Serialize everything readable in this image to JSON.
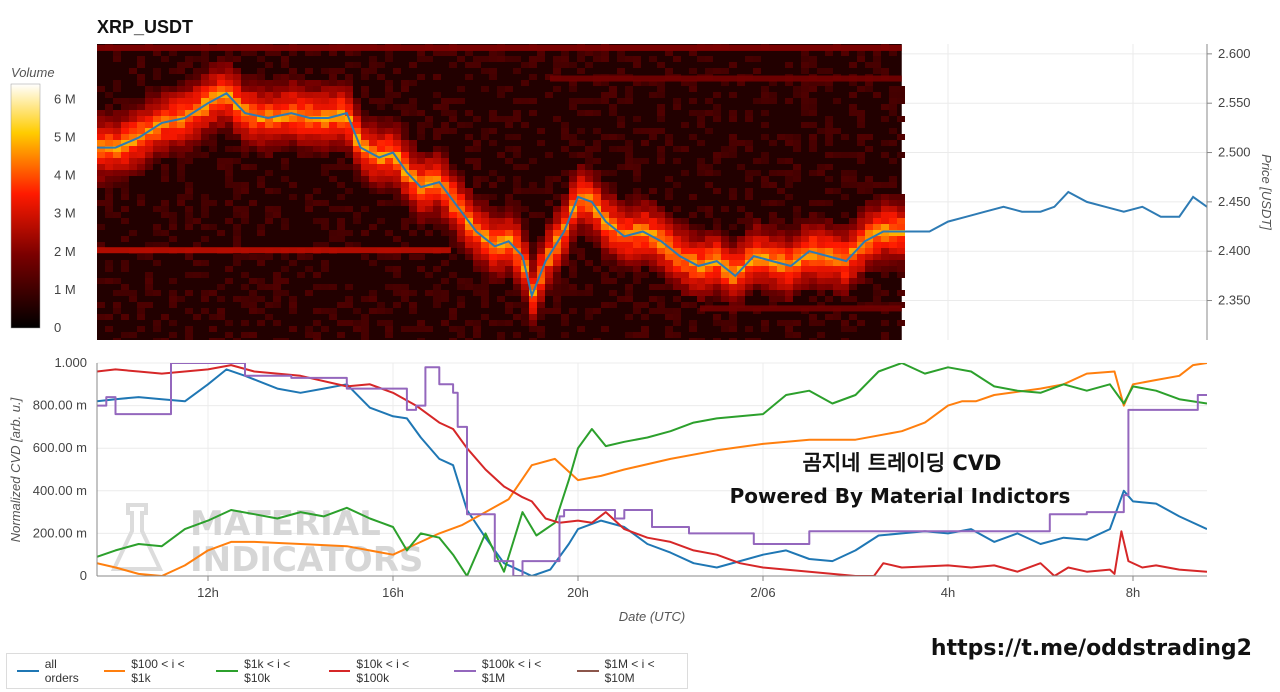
{
  "chart_data": [
    {
      "type": "heatmap",
      "title": "XRP_USDT",
      "colorbar_label": "Volume",
      "colorbar_ticks": [
        "0",
        "1 M",
        "2 M",
        "3 M",
        "4 M",
        "5 M",
        "6 M"
      ],
      "colorbar_values": [
        0,
        1,
        2,
        3,
        4,
        5,
        6
      ],
      "ylabel": "Price [USDT]",
      "ylim": [
        2.31,
        2.61
      ],
      "y_ticks": [
        "2.350",
        "2.400",
        "2.450",
        "2.500",
        "2.550",
        "2.600"
      ],
      "y_tick_values": [
        2.35,
        2.4,
        2.45,
        2.5,
        2.55,
        2.6
      ],
      "x_hours_range": [
        9.6,
        33.6
      ],
      "heatmap_end_hour": 27.0,
      "price_line": {
        "color": "#2e7bb4",
        "x": [
          9.6,
          10.0,
          10.5,
          11.0,
          11.5,
          12.0,
          12.4,
          12.8,
          13.3,
          13.8,
          14.2,
          14.6,
          15.0,
          15.3,
          15.7,
          16.0,
          16.3,
          16.6,
          17.0,
          17.4,
          17.8,
          18.2,
          18.5,
          18.8,
          19.0,
          19.3,
          19.7,
          20.0,
          20.3,
          20.6,
          21.0,
          21.4,
          21.8,
          22.2,
          22.6,
          23.0,
          23.4,
          23.8,
          24.2,
          24.6,
          25.0,
          25.4,
          25.8,
          26.2,
          26.6,
          27.0,
          27.3,
          27.6,
          28.0,
          28.4,
          28.8,
          29.2,
          29.6,
          30.0,
          30.3,
          30.6,
          31.0,
          31.4,
          31.8,
          32.2,
          32.6,
          33.0,
          33.3,
          33.6
        ],
        "y": [
          2.505,
          2.505,
          2.515,
          2.53,
          2.535,
          2.55,
          2.56,
          2.54,
          2.535,
          2.54,
          2.535,
          2.535,
          2.54,
          2.505,
          2.495,
          2.5,
          2.48,
          2.465,
          2.47,
          2.445,
          2.42,
          2.405,
          2.41,
          2.395,
          2.355,
          2.39,
          2.42,
          2.455,
          2.45,
          2.43,
          2.415,
          2.42,
          2.41,
          2.395,
          2.385,
          2.39,
          2.375,
          2.395,
          2.39,
          2.385,
          2.4,
          2.395,
          2.39,
          2.41,
          2.42,
          2.42,
          2.42,
          2.42,
          2.43,
          2.435,
          2.44,
          2.445,
          2.44,
          2.44,
          2.445,
          2.46,
          2.45,
          2.445,
          2.44,
          2.445,
          2.435,
          2.435,
          2.455,
          2.445
        ]
      }
    },
    {
      "type": "line",
      "xlabel": "Date (UTC)",
      "ylabel": "Normalized CVD [arb. u.]",
      "ylim": [
        0,
        1000
      ],
      "y_ticks": [
        "0",
        "200.00 m",
        "400.00 m",
        "600.00 m",
        "800.00 m",
        "1.000"
      ],
      "y_tick_values": [
        0,
        200,
        400,
        600,
        800,
        1000
      ],
      "x_ticks": [
        "12h",
        "16h",
        "20h",
        "2/06",
        "4h",
        "8h"
      ],
      "x_tick_hours": [
        12,
        16,
        20,
        24,
        28,
        32
      ],
      "x_range_hours": [
        9.6,
        33.6
      ],
      "series": [
        {
          "name": "all orders",
          "color": "#1f77b4",
          "x": [
            9.6,
            10.0,
            10.5,
            11.0,
            11.5,
            12.0,
            12.4,
            12.8,
            13.5,
            14.0,
            14.5,
            15.0,
            15.5,
            16.0,
            16.3,
            16.6,
            17.0,
            17.3,
            17.6,
            18.0,
            18.4,
            18.8,
            19.0,
            19.4,
            19.8,
            20.0,
            20.5,
            21.0,
            21.5,
            22.0,
            22.5,
            23.0,
            23.5,
            24.0,
            24.5,
            25.0,
            25.5,
            26.0,
            26.5,
            27.0,
            27.5,
            28.0,
            28.5,
            29.0,
            29.5,
            30.0,
            30.5,
            31.0,
            31.5,
            31.8,
            32.0,
            32.5,
            33.0,
            33.6
          ],
          "y": [
            820,
            830,
            840,
            830,
            820,
            900,
            970,
            940,
            880,
            860,
            880,
            900,
            790,
            750,
            740,
            650,
            550,
            520,
            310,
            180,
            60,
            20,
            0,
            30,
            150,
            220,
            260,
            230,
            150,
            110,
            60,
            40,
            70,
            100,
            120,
            80,
            70,
            120,
            190,
            200,
            210,
            200,
            220,
            160,
            200,
            150,
            180,
            170,
            220,
            400,
            350,
            340,
            280,
            220
          ]
        },
        {
          "name": "$100 < i < $1k",
          "color": "#ff7f0e",
          "x": [
            9.6,
            10.0,
            10.5,
            11.0,
            11.5,
            12.0,
            12.5,
            13.0,
            14.0,
            15.0,
            16.0,
            16.5,
            17.0,
            17.5,
            18.0,
            18.5,
            19.0,
            19.5,
            20.0,
            20.5,
            21.0,
            22.0,
            23.0,
            24.0,
            25.0,
            26.0,
            27.0,
            27.5,
            28.0,
            28.3,
            28.6,
            29.0,
            30.0,
            30.5,
            31.0,
            31.6,
            31.8,
            32.0,
            32.5,
            33.0,
            33.3,
            33.6
          ],
          "y": [
            60,
            40,
            10,
            0,
            50,
            120,
            160,
            160,
            150,
            140,
            100,
            150,
            200,
            240,
            300,
            360,
            520,
            550,
            450,
            470,
            500,
            550,
            590,
            620,
            640,
            640,
            680,
            720,
            800,
            820,
            820,
            850,
            880,
            900,
            950,
            960,
            800,
            900,
            920,
            940,
            990,
            1000
          ]
        },
        {
          "name": "$1k < i < $10k",
          "color": "#2ca02c",
          "x": [
            9.6,
            10.0,
            10.5,
            11.0,
            11.5,
            12.0,
            12.5,
            13.0,
            13.5,
            14.0,
            14.5,
            15.0,
            15.5,
            16.0,
            16.3,
            16.6,
            17.0,
            17.3,
            17.6,
            18.0,
            18.4,
            18.8,
            19.1,
            19.5,
            19.8,
            20.0,
            20.3,
            20.6,
            21.0,
            21.5,
            22.0,
            22.5,
            23.0,
            23.5,
            24.0,
            24.5,
            25.0,
            25.5,
            26.0,
            26.5,
            27.0,
            27.5,
            28.0,
            28.5,
            29.0,
            29.5,
            30.0,
            30.5,
            31.0,
            31.5,
            31.8,
            32.0,
            32.5,
            33.0,
            33.6
          ],
          "y": [
            90,
            120,
            150,
            140,
            220,
            260,
            310,
            290,
            270,
            300,
            280,
            320,
            270,
            230,
            120,
            200,
            180,
            100,
            0,
            200,
            20,
            300,
            190,
            250,
            450,
            600,
            690,
            610,
            630,
            650,
            680,
            720,
            740,
            750,
            760,
            850,
            870,
            810,
            850,
            960,
            1000,
            950,
            980,
            960,
            890,
            870,
            860,
            900,
            870,
            900,
            810,
            890,
            870,
            830,
            810
          ]
        },
        {
          "name": "$10k < i < $100k",
          "color": "#d62728",
          "x": [
            9.6,
            10.0,
            10.5,
            11.0,
            11.5,
            12.0,
            12.5,
            13.0,
            14.0,
            15.0,
            15.5,
            16.0,
            16.5,
            17.0,
            17.3,
            17.6,
            18.0,
            18.4,
            18.8,
            19.0,
            19.3,
            19.6,
            20.0,
            20.3,
            20.6,
            21.0,
            21.5,
            22.0,
            22.5,
            23.0,
            23.5,
            24.0,
            25.0,
            26.0,
            26.4,
            26.6,
            27.0,
            28.0,
            28.5,
            29.0,
            29.5,
            30.0,
            30.3,
            30.6,
            31.0,
            31.5,
            31.6,
            31.75,
            31.9,
            32.2,
            32.5,
            33.0,
            33.6
          ],
          "y": [
            960,
            970,
            960,
            950,
            960,
            970,
            990,
            960,
            940,
            890,
            900,
            860,
            800,
            720,
            690,
            600,
            500,
            420,
            370,
            350,
            270,
            250,
            260,
            250,
            300,
            220,
            180,
            160,
            120,
            100,
            60,
            40,
            20,
            0,
            0,
            60,
            40,
            50,
            40,
            50,
            20,
            60,
            0,
            40,
            20,
            30,
            10,
            210,
            70,
            40,
            50,
            30,
            20
          ]
        },
        {
          "name": "$100k < i < $1M",
          "color": "#9467bd",
          "step": true,
          "x": [
            9.6,
            9.8,
            10.0,
            11.0,
            11.2,
            12.2,
            12.8,
            13.8,
            14.8,
            15.0,
            16.1,
            16.3,
            16.5,
            16.7,
            17.0,
            17.3,
            17.4,
            17.6,
            18.2,
            18.6,
            18.8,
            19.6,
            19.7,
            20.2,
            20.8,
            21.0,
            21.6,
            22.4,
            23.8,
            24.2,
            25.0,
            25.8,
            26.2,
            30.2,
            30.6,
            31.0,
            31.6,
            31.8,
            31.9,
            32.4,
            33.2,
            33.4,
            33.6
          ],
          "y": [
            800,
            840,
            760,
            760,
            1000,
            1000,
            940,
            930,
            930,
            880,
            880,
            780,
            800,
            980,
            900,
            860,
            700,
            290,
            70,
            0,
            70,
            280,
            310,
            310,
            270,
            310,
            230,
            200,
            150,
            150,
            210,
            210,
            210,
            290,
            290,
            300,
            300,
            380,
            780,
            780,
            780,
            850,
            850
          ]
        },
        {
          "name": "$1M < i < $10M",
          "color": "#8c564b",
          "x": [],
          "y": []
        }
      ],
      "legend_position": "bottom"
    }
  ],
  "watermark": {
    "line1": "MATERIAL",
    "line2": "INDICATORS"
  },
  "annotation": {
    "line1": "곰지네 트레이딩 CVD",
    "line2": "Powered By Material Indictors"
  },
  "footer_url": "https://t.me/oddstrading2",
  "legend": [
    {
      "label": "all orders",
      "color": "#1f77b4"
    },
    {
      "label": "$100 < i < $1k",
      "color": "#ff7f0e"
    },
    {
      "label": "$1k < i < $10k",
      "color": "#2ca02c"
    },
    {
      "label": "$10k < i < $100k",
      "color": "#d62728"
    },
    {
      "label": "$100k < i < $1M",
      "color": "#9467bd"
    },
    {
      "label": "$1M < i < $10M",
      "color": "#8c564b"
    }
  ]
}
